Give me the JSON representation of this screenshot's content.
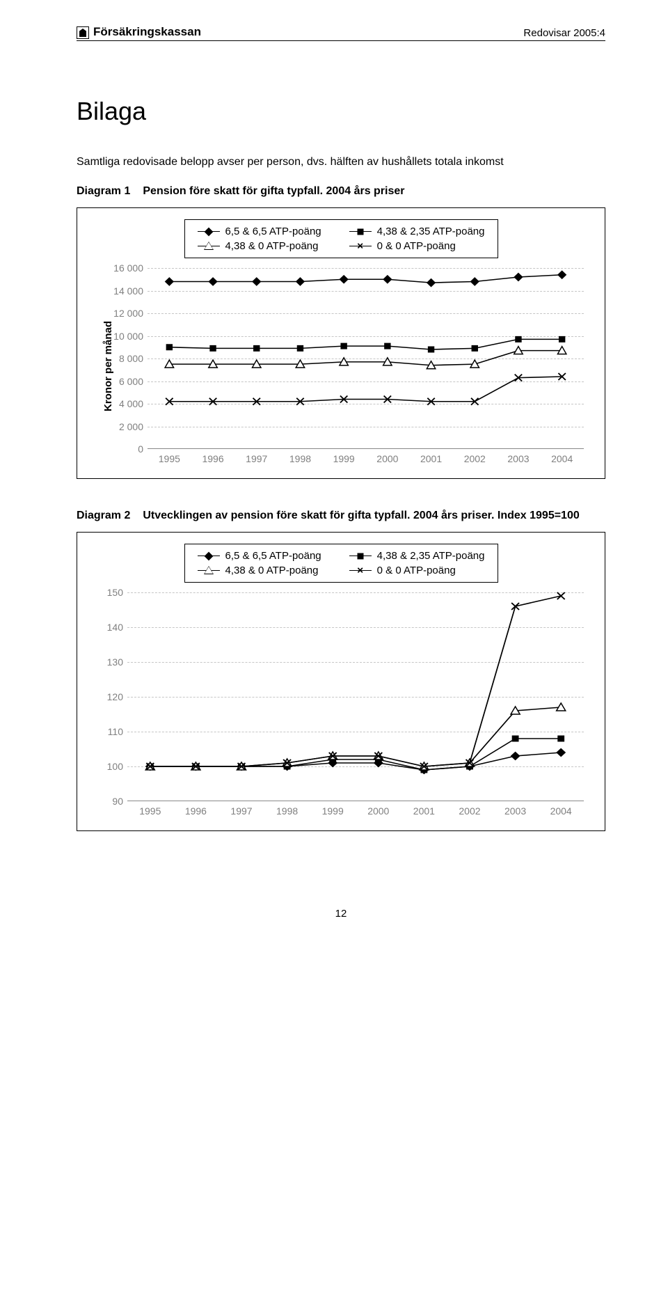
{
  "header": {
    "brand": "Försäkringskassan",
    "right": "Redovisar 2005:4"
  },
  "title": "Bilaga",
  "intro": "Samtliga redovisade belopp avser per person, dvs. hälften av hushållets totala inkomst",
  "diagram1": {
    "label": "Diagram 1",
    "title": "Pension före skatt för gifta typfall. 2004 års priser",
    "legend": [
      "6,5 &  6,5 ATP-poäng",
      "4,38 & 2,35 ATP-poäng",
      "4,38 & 0 ATP-poäng",
      "0 & 0 ATP-poäng"
    ],
    "ylabel": "Kronor per månad",
    "ymin": 0,
    "ymax": 16000,
    "ystep": 2000,
    "years": [
      "1995",
      "1996",
      "1997",
      "1998",
      "1999",
      "2000",
      "2001",
      "2002",
      "2003",
      "2004"
    ],
    "series": {
      "s1": [
        14800,
        14800,
        14800,
        14800,
        15000,
        15000,
        14700,
        14800,
        15200,
        15400
      ],
      "s2": [
        9000,
        8900,
        8900,
        8900,
        9100,
        9100,
        8800,
        8900,
        9700,
        9700
      ],
      "s3": [
        7500,
        7500,
        7500,
        7500,
        7700,
        7700,
        7400,
        7500,
        8700,
        8700
      ],
      "s4": [
        4200,
        4200,
        4200,
        4200,
        4400,
        4400,
        4200,
        4200,
        6300,
        6400
      ]
    },
    "markers": {
      "s1": "diamond",
      "s2": "square",
      "s3": "triangle",
      "s4": "x"
    },
    "line_color": "#000000",
    "grid_color": "#c6c6c6",
    "tick_color": "#7f7f7f"
  },
  "diagram2": {
    "label": "Diagram 2",
    "title": "Utvecklingen av pension före skatt för gifta typfall. 2004 års priser. Index 1995=100",
    "legend": [
      "6,5 &  6,5 ATP-poäng",
      "4,38 & 2,35 ATP-poäng",
      "4,38 & 0 ATP-poäng",
      "0 & 0 ATP-poäng"
    ],
    "ymin": 90,
    "ymax": 150,
    "ystep": 10,
    "years": [
      "1995",
      "1996",
      "1997",
      "1998",
      "1999",
      "2000",
      "2001",
      "2002",
      "2003",
      "2004"
    ],
    "series": {
      "s1": [
        100,
        100,
        100,
        100,
        101,
        101,
        99,
        100,
        103,
        104
      ],
      "s2": [
        100,
        100,
        100,
        100,
        102,
        102,
        99,
        100,
        108,
        108
      ],
      "s3": [
        100,
        100,
        100,
        101,
        103,
        103,
        100,
        101,
        116,
        117
      ],
      "s4": [
        100,
        100,
        100,
        101,
        103,
        103,
        100,
        101,
        146,
        149
      ]
    },
    "markers": {
      "s1": "diamond",
      "s2": "square",
      "s3": "triangle",
      "s4": "x"
    },
    "line_color": "#000000",
    "grid_color": "#c6c6c6",
    "tick_color": "#7f7f7f"
  },
  "page_number": "12"
}
